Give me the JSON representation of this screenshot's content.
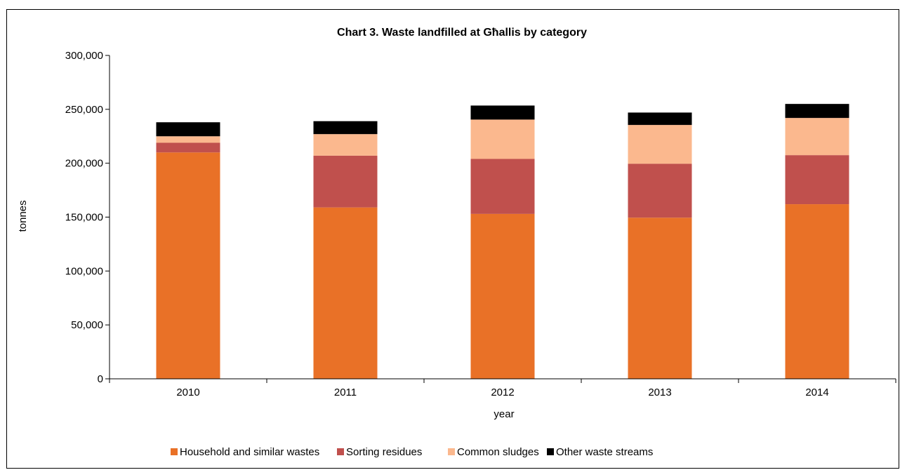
{
  "chart_data": {
    "type": "bar",
    "stacked": true,
    "title": "Chart 3. Waste landfilled at Għallis by category",
    "xlabel": "year",
    "ylabel": "tonnes",
    "ylim": [
      0,
      300000
    ],
    "y_ticks": [
      0,
      50000,
      100000,
      150000,
      200000,
      250000,
      300000
    ],
    "y_tick_labels": [
      "0",
      "50,000",
      "100,000",
      "150,000",
      "200,000",
      "250,000",
      "300,000"
    ],
    "grid": false,
    "legend_position": "bottom",
    "categories": [
      "2010",
      "2011",
      "2012",
      "2013",
      "2014"
    ],
    "series": [
      {
        "name": "Household and similar wastes",
        "color": "#E97127",
        "values": [
          210000,
          159000,
          153000,
          149500,
          162000
        ]
      },
      {
        "name": "Sorting residues",
        "color": "#C0504D",
        "values": [
          9000,
          48000,
          51000,
          50000,
          45500
        ]
      },
      {
        "name": "Common sludges",
        "color": "#FBB88E",
        "values": [
          6000,
          20000,
          36500,
          36000,
          34500
        ]
      },
      {
        "name": "Other waste streams",
        "color": "#000000",
        "values": [
          13000,
          12000,
          13000,
          11500,
          13000
        ]
      }
    ]
  }
}
